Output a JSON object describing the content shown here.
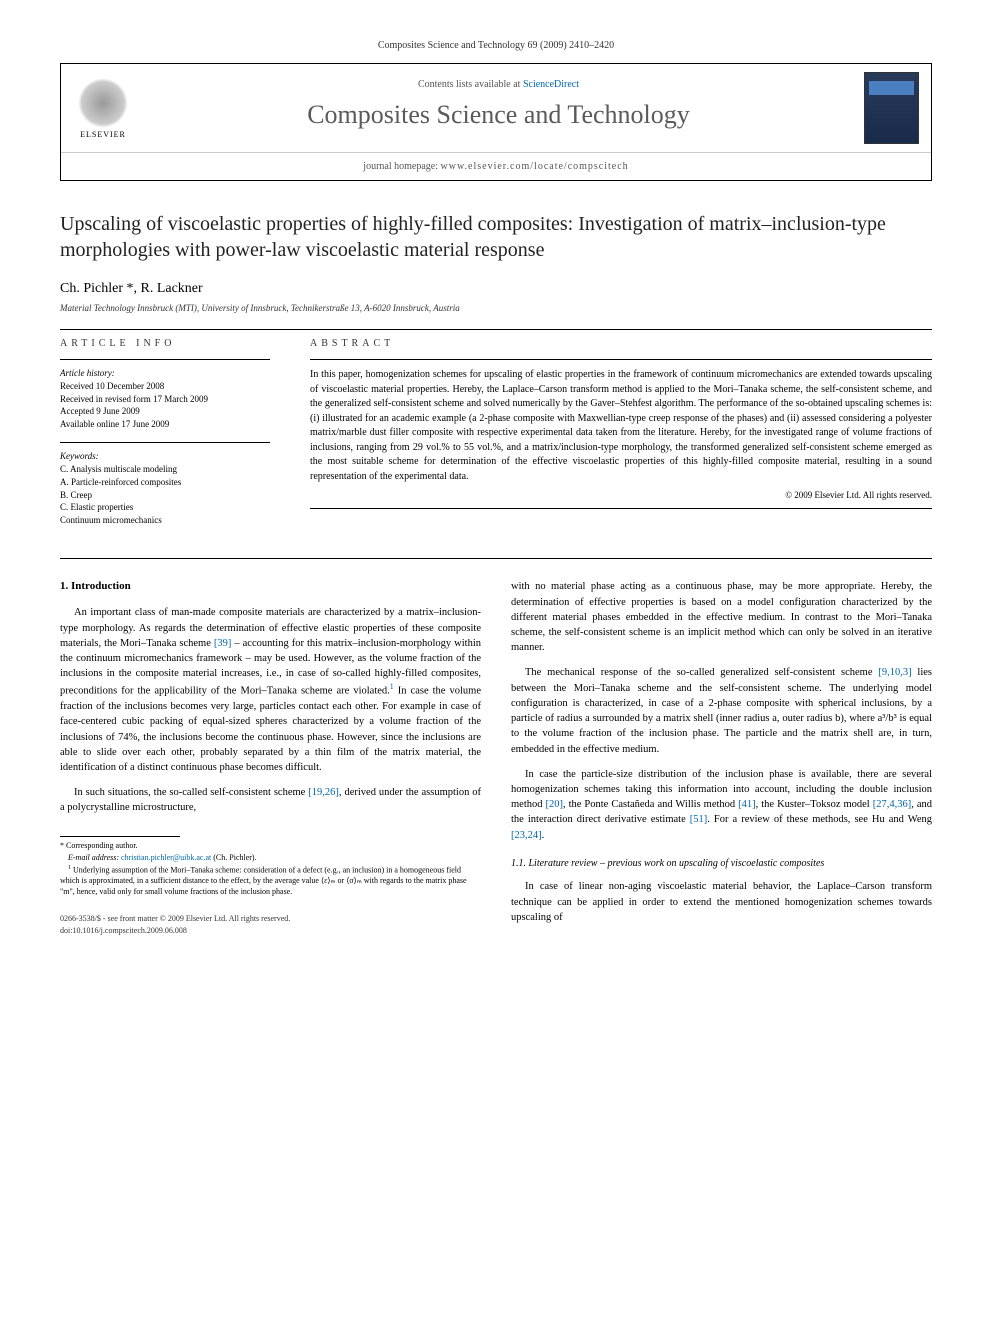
{
  "journal_ref": "Composites Science and Technology 69 (2009) 2410–2420",
  "header": {
    "elsevier_label": "ELSEVIER",
    "contents_prefix": "Contents lists available at ",
    "contents_link": "ScienceDirect",
    "journal_name": "Composites Science and Technology",
    "homepage_prefix": "journal homepage: ",
    "homepage_url": "www.elsevier.com/locate/compscitech",
    "cover_label": "COMPOSITES SCIENCE AND TECHNOLOGY"
  },
  "title": "Upscaling of viscoelastic properties of highly-filled composites: Investigation of matrix–inclusion-type morphologies with power-law viscoelastic material response",
  "authors": "Ch. Pichler *, R. Lackner",
  "affiliation": "Material Technology Innsbruck (MTI), University of Innsbruck, Technikerstraße 13, A-6020 Innsbruck, Austria",
  "article_info": {
    "heading": "ARTICLE INFO",
    "history_label": "Article history:",
    "history": [
      "Received 10 December 2008",
      "Received in revised form 17 March 2009",
      "Accepted 9 June 2009",
      "Available online 17 June 2009"
    ],
    "keywords_label": "Keywords:",
    "keywords": [
      "C. Analysis multiscale modeling",
      "A. Particle-reinforced composites",
      "B. Creep",
      "C. Elastic properties",
      "Continuum micromechanics"
    ]
  },
  "abstract": {
    "heading": "ABSTRACT",
    "text": "In this paper, homogenization schemes for upscaling of elastic properties in the framework of continuum micromechanics are extended towards upscaling of viscoelastic material properties. Hereby, the Laplace–Carson transform method is applied to the Mori–Tanaka scheme, the self-consistent scheme, and the generalized self-consistent scheme and solved numerically by the Gaver–Stehfest algorithm. The performance of the so-obtained upscaling schemes is: (i) illustrated for an academic example (a 2-phase composite with Maxwellian-type creep response of the phases) and (ii) assessed considering a polyester matrix/marble dust filler composite with respective experimental data taken from the literature. Hereby, for the investigated range of volume fractions of inclusions, ranging from 29 vol.% to 55 vol.%, and a matrix/inclusion-type morphology, the transformed generalized self-consistent scheme emerged as the most suitable scheme for determination of the effective viscoelastic properties of this highly-filled composite material, resulting in a sound representation of the experimental data.",
    "copyright": "© 2009 Elsevier Ltd. All rights reserved."
  },
  "body": {
    "section1_heading": "1. Introduction",
    "col1_p1a": "An important class of man-made composite materials are characterized by a matrix–inclusion-type morphology. As regards the determination of effective elastic properties of these composite materials, the Mori–Tanaka scheme ",
    "col1_ref1": "[39]",
    "col1_p1b": " – accounting for this matrix–inclusion-morphology within the continuum micromechanics framework – may be used. However, as the volume fraction of the inclusions in the composite material increases, i.e., in case of so-called highly-filled composites, preconditions for the applicability of the Mori–Tanaka scheme are violated.",
    "col1_fn1": "1",
    "col1_p1c": " In case the volume fraction of the inclusions becomes very large, particles contact each other. For example in case of face-centered cubic packing of equal-sized spheres characterized by a volume fraction of the inclusions of 74%, the inclusions become the continuous phase. However, since the inclusions are able to slide over each other, probably separated by a thin film of the matrix material, the identification of a distinct continuous phase becomes difficult.",
    "col1_p2a": "In such situations, the so-called self-consistent scheme ",
    "col1_ref2": "[19,26]",
    "col1_p2b": ", derived under the assumption of a polycrystalline microstructure,",
    "col2_p1": "with no material phase acting as a continuous phase, may be more appropriate. Hereby, the determination of effective properties is based on a model configuration characterized by the different material phases embedded in the effective medium. In contrast to the Mori–Tanaka scheme, the self-consistent scheme is an implicit method which can only be solved in an iterative manner.",
    "col2_p2a": "The mechanical response of the so-called generalized self-consistent scheme ",
    "col2_ref1": "[9,10,3]",
    "col2_p2b": " lies between the Mori–Tanaka scheme and the self-consistent scheme. The underlying model configuration is characterized, in case of a 2-phase composite with spherical inclusions, by a particle of radius a surrounded by a matrix shell (inner radius a, outer radius b), where a³/b³ is equal to the volume fraction of the inclusion phase. The particle and the matrix shell are, in turn, embedded in the effective medium.",
    "col2_p3a": "In case the particle-size distribution of the inclusion phase is available, there are several homogenization schemes taking this information into account, including the double inclusion method ",
    "col2_ref2": "[20]",
    "col2_p3b": ", the Ponte Castañeda and Willis method ",
    "col2_ref3": "[41]",
    "col2_p3c": ", the Kuster–Toksoz model ",
    "col2_ref4": "[27,4,36]",
    "col2_p3d": ", and the interaction direct derivative estimate ",
    "col2_ref5": "[51]",
    "col2_p3e": ". For a review of these methods, see Hu and Weng ",
    "col2_ref6": "[23,24]",
    "col2_p3f": ".",
    "subsection_heading": "1.1. Literature review – previous work on upscaling of viscoelastic composites",
    "col2_p4": "In case of linear non-aging viscoelastic material behavior, the Laplace–Carson transform technique can be applied in order to extend the mentioned homogenization schemes towards upscaling of"
  },
  "footnotes": {
    "corresponding": "* Corresponding author.",
    "email_label": "E-mail address: ",
    "email": "christian.pichler@uibk.ac.at",
    "email_author": " (Ch. Pichler).",
    "fn1_marker": "1",
    "fn1_text": " Underlying assumption of the Mori–Tanaka scheme: consideration of a defect (e.g., an inclusion) in a homogeneous field which is approximated, in a sufficient distance to the effect, by the average value ⟨ε⟩ₘ or ⟨σ⟩ₘ with regards to the matrix phase \"m\", hence, valid only for small volume fractions of the inclusion phase."
  },
  "footer": {
    "issn": "0266-3538/$ - see front matter © 2009 Elsevier Ltd. All rights reserved.",
    "doi": "doi:10.1016/j.compscitech.2009.06.008"
  }
}
